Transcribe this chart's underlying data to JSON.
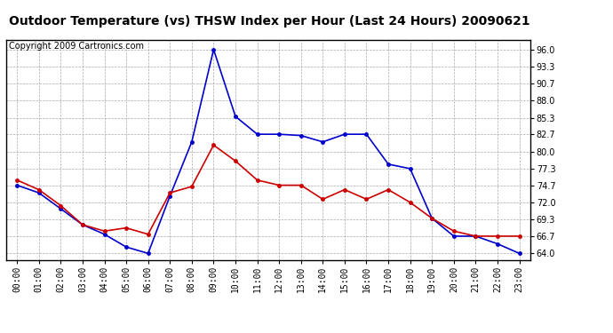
{
  "title": "Outdoor Temperature (vs) THSW Index per Hour (Last 24 Hours) 20090621",
  "copyright": "Copyright 2009 Cartronics.com",
  "hours": [
    0,
    1,
    2,
    3,
    4,
    5,
    6,
    7,
    8,
    9,
    10,
    11,
    12,
    13,
    14,
    15,
    16,
    17,
    18,
    19,
    20,
    21,
    22,
    23
  ],
  "hour_labels": [
    "00:00",
    "01:00",
    "02:00",
    "03:00",
    "04:00",
    "05:00",
    "06:00",
    "07:00",
    "08:00",
    "09:00",
    "10:00",
    "11:00",
    "12:00",
    "13:00",
    "14:00",
    "15:00",
    "16:00",
    "17:00",
    "18:00",
    "19:00",
    "20:00",
    "21:00",
    "22:00",
    "23:00"
  ],
  "temp_red": [
    75.5,
    74.0,
    71.5,
    68.5,
    67.5,
    68.0,
    67.0,
    73.5,
    74.5,
    81.0,
    78.5,
    75.5,
    74.7,
    74.7,
    72.5,
    74.0,
    72.5,
    74.0,
    72.0,
    69.5,
    67.5,
    66.7,
    66.7,
    66.7
  ],
  "thsw_blue": [
    74.7,
    73.5,
    71.0,
    68.5,
    67.0,
    65.0,
    64.0,
    73.0,
    81.5,
    96.0,
    85.5,
    82.7,
    82.7,
    82.5,
    81.5,
    82.7,
    82.7,
    78.0,
    77.3,
    69.5,
    66.7,
    66.7,
    65.5,
    64.0
  ],
  "ylim_min": 63.0,
  "ylim_max": 97.5,
  "ytick_values": [
    64.0,
    66.7,
    69.3,
    72.0,
    74.7,
    77.3,
    80.0,
    82.7,
    85.3,
    88.0,
    90.7,
    93.3,
    96.0
  ],
  "bg_color": "#ffffff",
  "grid_color": "#aaaaaa",
  "temp_color": "#cc0000",
  "thsw_color": "#0000cc",
  "marker": "o",
  "marker_size": 2.5,
  "line_width": 1.2,
  "title_fontsize": 10,
  "copyright_fontsize": 7,
  "tick_fontsize": 7
}
